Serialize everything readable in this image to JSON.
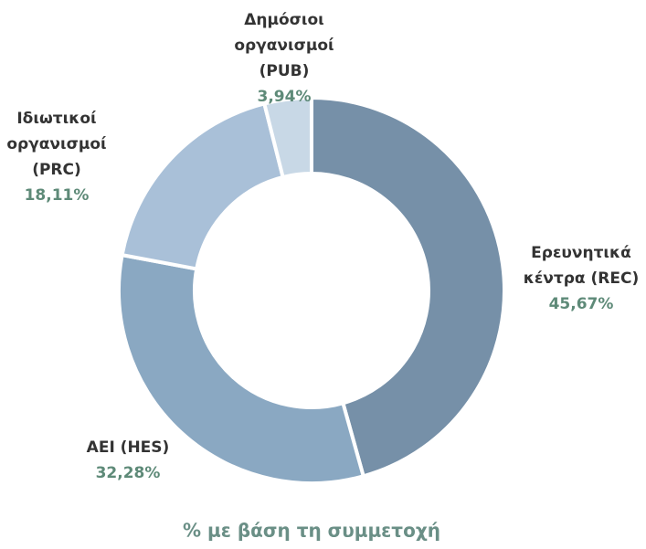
{
  "chart_data": {
    "type": "donut",
    "title": "% με βάση τη συμμετοχή",
    "categories": [
      [
        "Ερευνητικά",
        "κέντρα (REC)"
      ],
      [
        "ΑΕΙ (HES)"
      ],
      [
        "Ιδιωτικοί",
        "οργανισμοί",
        "(PRC)"
      ],
      [
        "Δημόσιοι",
        "οργανισμοί",
        "(PUB)"
      ]
    ],
    "values": [
      45.67,
      32.28,
      18.11,
      3.94
    ],
    "value_labels": [
      "45,67%",
      "32,28%",
      "18,11%",
      "3,94%"
    ],
    "colors": [
      "#7690a8",
      "#8aa8c2",
      "#a9c0d8",
      "#c8d8e6"
    ]
  }
}
